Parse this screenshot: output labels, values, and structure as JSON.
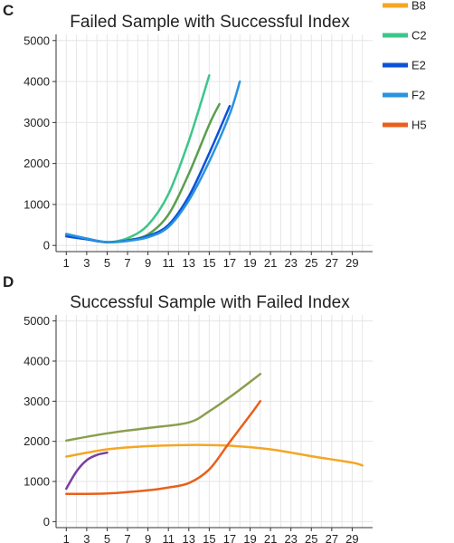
{
  "legend": {
    "placement": "top-right",
    "entries": [
      {
        "name": "B8",
        "color": "#f5a623"
      },
      {
        "name": "C2",
        "color": "#3cc68a"
      },
      {
        "name": "E2",
        "color": "#0a52d8"
      },
      {
        "name": "F2",
        "color": "#2a93e0"
      },
      {
        "name": "H5",
        "color": "#e8601c"
      }
    ]
  },
  "chart_data": [
    {
      "type": "line",
      "panel": "C",
      "title": "Failed Sample with Successful Index",
      "xlabel": "",
      "ylabel": "",
      "xlim": [
        0,
        31
      ],
      "ylim": [
        -150,
        5150
      ],
      "x_ticks": [
        1,
        3,
        5,
        7,
        9,
        11,
        13,
        15,
        17,
        19,
        21,
        23,
        25,
        27,
        29
      ],
      "y_ticks": [
        0,
        1000,
        2000,
        3000,
        4000,
        5000
      ],
      "grid": true,
      "series": [
        {
          "name": "C2",
          "color": "#3cc68a",
          "x": [
            1,
            3,
            5,
            7,
            9,
            11,
            13,
            15
          ],
          "y": [
            270,
            160,
            80,
            180,
            500,
            1250,
            2550,
            4150
          ]
        },
        {
          "name": "",
          "color": "#5a9e4e",
          "x": [
            1,
            3,
            5,
            7,
            9,
            11,
            13,
            15,
            16
          ],
          "y": [
            260,
            160,
            80,
            130,
            270,
            750,
            1750,
            2950,
            3450
          ]
        },
        {
          "name": "E2",
          "color": "#0a52d8",
          "x": [
            1,
            3,
            5,
            7,
            9,
            11,
            13,
            15,
            17
          ],
          "y": [
            220,
            150,
            80,
            120,
            230,
            500,
            1200,
            2250,
            3400
          ]
        },
        {
          "name": "F2",
          "color": "#2a93e0",
          "x": [
            1,
            3,
            5,
            7,
            9,
            11,
            13,
            15,
            17,
            18
          ],
          "y": [
            280,
            170,
            80,
            110,
            200,
            450,
            1100,
            2050,
            3200,
            4000
          ]
        }
      ]
    },
    {
      "type": "line",
      "panel": "D",
      "title": "Successful Sample with Failed Index",
      "xlabel": "",
      "ylabel": "",
      "xlim": [
        0,
        31
      ],
      "ylim": [
        -150,
        5150
      ],
      "x_ticks": [
        1,
        3,
        5,
        7,
        9,
        11,
        13,
        15,
        17,
        19,
        21,
        23,
        25,
        27,
        29
      ],
      "y_ticks": [
        0,
        1000,
        2000,
        3000,
        4000,
        5000
      ],
      "grid": true,
      "series": [
        {
          "name": "B8",
          "color": "#f5a623",
          "x": [
            1,
            5,
            9,
            13,
            17,
            21,
            25,
            29,
            30
          ],
          "y": [
            1620,
            1800,
            1880,
            1910,
            1890,
            1800,
            1630,
            1470,
            1400
          ]
        },
        {
          "name": "",
          "color": "#8a9e4e",
          "x": [
            1,
            5,
            9,
            13,
            15,
            17,
            19,
            20
          ],
          "y": [
            2020,
            2200,
            2330,
            2470,
            2750,
            3100,
            3480,
            3680
          ]
        },
        {
          "name": "H5",
          "color": "#e8601c",
          "x": [
            1,
            5,
            9,
            11,
            13,
            15,
            17,
            19,
            20
          ],
          "y": [
            690,
            700,
            780,
            850,
            960,
            1300,
            1980,
            2650,
            3000
          ]
        },
        {
          "name": "",
          "color": "#7a3fa0",
          "x": [
            1,
            2,
            3,
            4,
            5
          ],
          "y": [
            820,
            1250,
            1530,
            1660,
            1720
          ]
        }
      ]
    }
  ]
}
